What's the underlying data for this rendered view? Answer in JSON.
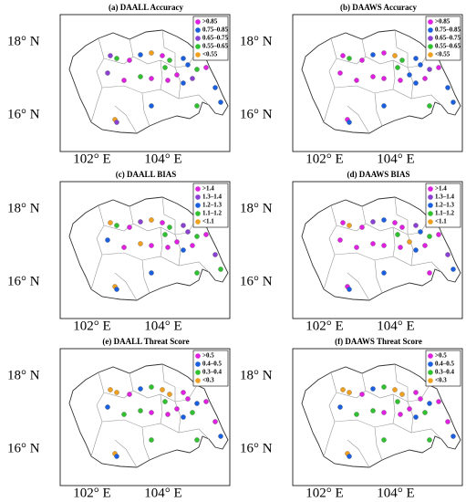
{
  "panels": [
    {
      "title": "(a) DAALL Accuracy",
      "lat_labels": [
        "18° N",
        "16° N"
      ],
      "lon_labels": [
        "102° E",
        "104° E"
      ],
      "legend": [
        {
          "label": ">0.85",
          "color": "#e020e0"
        },
        {
          "label": "0.75–0.85",
          "color": "#1a5fe0"
        },
        {
          "label": "0.65–0.75",
          "color": "#8a40d0"
        },
        {
          "label": "0.55–0.65",
          "color": "#30c030"
        },
        {
          "label": "<0.55",
          "color": "#f0a020"
        }
      ]
    },
    {
      "title": "(b) DAAWS Accuracy",
      "lat_labels": [
        "18° N",
        "16° N"
      ],
      "lon_labels": [
        "102° E",
        "104° E"
      ],
      "legend": [
        {
          "label": ">0.85",
          "color": "#e020e0"
        },
        {
          "label": "0.75–0.85",
          "color": "#1a5fe0"
        },
        {
          "label": "0.65–0.75",
          "color": "#8a40d0"
        },
        {
          "label": "0.55–0.65",
          "color": "#30c030"
        },
        {
          "label": "<0.55",
          "color": "#f0a020"
        }
      ]
    },
    {
      "title": "(c) DAALL BIAS",
      "lat_labels": [
        "18° N",
        "16° N"
      ],
      "lon_labels": [
        "102° E",
        "104° E"
      ],
      "legend": [
        {
          "label": ">1.4",
          "color": "#e020e0"
        },
        {
          "label": "1.3–1.4",
          "color": "#8a40d0"
        },
        {
          "label": "1.2–1.3",
          "color": "#1a5fe0"
        },
        {
          "label": "1.1–1.2",
          "color": "#30c030"
        },
        {
          "label": "<1.1",
          "color": "#f0a020"
        }
      ]
    },
    {
      "title": "(d) DAAWS BIAS",
      "lat_labels": [
        "18° N",
        "16° N"
      ],
      "lon_labels": [
        "102° E",
        "104° E"
      ],
      "legend": [
        {
          "label": ">1.4",
          "color": "#e020e0"
        },
        {
          "label": "1.3–1.4",
          "color": "#8a40d0"
        },
        {
          "label": "1.2–1.3",
          "color": "#1a5fe0"
        },
        {
          "label": "1.1–1.2",
          "color": "#30c030"
        },
        {
          "label": "<1.1",
          "color": "#f0a020"
        }
      ]
    },
    {
      "title": "(e) DAALL Threat Score",
      "lat_labels": [
        "18° N",
        "16° N"
      ],
      "lon_labels": [
        "102° E",
        "104° E"
      ],
      "legend": [
        {
          "label": ">0.5",
          "color": "#e020e0"
        },
        {
          "label": "0.4–0.5",
          "color": "#1a5fe0"
        },
        {
          "label": "0.3–0.4",
          "color": "#30c030"
        },
        {
          "label": "<0.3",
          "color": "#f0a020"
        }
      ]
    },
    {
      "title": "(f) DAAWS Threat Score",
      "lat_labels": [
        "18° N",
        "16° N"
      ],
      "lon_labels": [
        "102° E",
        "104° E"
      ],
      "legend": [
        {
          "label": ">0.5",
          "color": "#e020e0"
        },
        {
          "label": "0.4–0.5",
          "color": "#1a5fe0"
        },
        {
          "label": "0.3–0.4",
          "color": "#30c030"
        },
        {
          "label": "<0.3",
          "color": "#f0a020"
        }
      ]
    }
  ]
}
